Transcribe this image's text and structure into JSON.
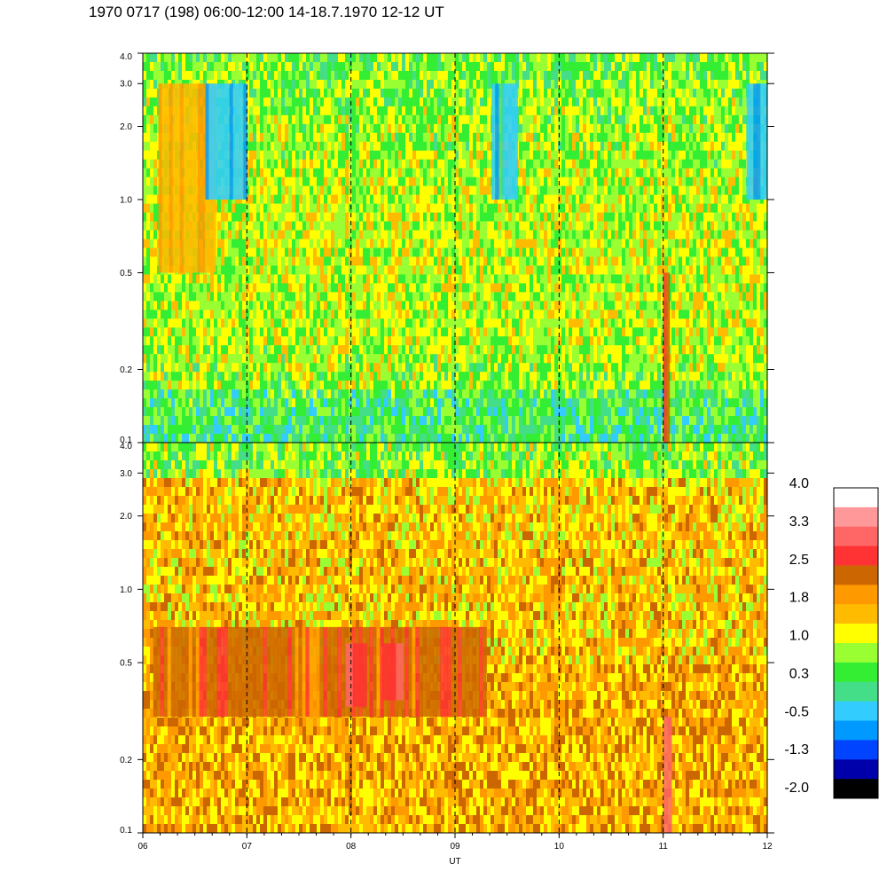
{
  "title": "1970 0717 (198) 06:00-12:00 14-18.7.1970  12-12 UT",
  "chart_data": {
    "type": "heatmap",
    "title": "1970 0717 (198) 06:00-12:00 14-18.7.1970  12-12 UT",
    "xlabel": "UT",
    "xlim": [
      6,
      12
    ],
    "x_ticks": [
      "06",
      "07",
      "08",
      "09",
      "10",
      "11",
      "12"
    ],
    "x_tick_values": [
      6,
      7,
      8,
      9,
      10,
      11,
      12
    ],
    "dashed_verticals": [
      7,
      8,
      9,
      10,
      11
    ],
    "panels": [
      {
        "name": "upper",
        "y_scale": "log",
        "ylim": [
          0.1,
          4.0
        ],
        "y_ticks": [
          "4.0",
          "3.0",
          "2.0",
          "1.0",
          "0.5",
          "0.2",
          "0.1"
        ],
        "y_tick_values": [
          4.0,
          3.0,
          2.0,
          1.0,
          0.5,
          0.2,
          0.1
        ],
        "dominant_levels": [
          0.3,
          1.0
        ],
        "features": [
          {
            "x_start": 6.15,
            "x_end": 6.7,
            "y_min": 0.5,
            "y_max": 3.0,
            "level": 1.8
          },
          {
            "x_start": 6.6,
            "x_end": 7.0,
            "y_min": 1.0,
            "y_max": 3.0,
            "level": -0.5
          },
          {
            "x_start": 9.35,
            "x_end": 9.6,
            "y_min": 1.0,
            "y_max": 3.0,
            "level": -0.5
          },
          {
            "x_start": 11.8,
            "x_end": 12.0,
            "y_min": 1.0,
            "y_max": 3.0,
            "level": -0.5
          },
          {
            "x_start": 11.0,
            "x_end": 11.06,
            "y_min": 0.1,
            "y_max": 0.5,
            "level": 2.5
          }
        ]
      },
      {
        "name": "lower",
        "y_scale": "log",
        "ylim": [
          0.1,
          4.0
        ],
        "y_ticks": [
          "4.0",
          "3.0",
          "2.0",
          "1.0",
          "0.5",
          "0.2",
          "0.1"
        ],
        "y_tick_values": [
          4.0,
          3.0,
          2.0,
          1.0,
          0.5,
          0.2,
          0.1
        ],
        "dominant_levels": [
          1.8,
          2.5
        ],
        "features": [
          {
            "x_start": 6.1,
            "x_end": 9.3,
            "y_min": 0.3,
            "y_max": 0.7,
            "level": 2.5
          },
          {
            "x_start": 7.95,
            "x_end": 8.15,
            "y_min": 0.33,
            "y_max": 0.6,
            "level": 3.0
          },
          {
            "x_start": 8.3,
            "x_end": 8.5,
            "y_min": 0.35,
            "y_max": 0.6,
            "level": 3.0
          },
          {
            "x_start": 11.0,
            "x_end": 11.08,
            "y_min": 0.1,
            "y_max": 0.3,
            "level": 3.0
          }
        ]
      }
    ],
    "colorbar": {
      "labels": [
        "4.0",
        "3.3",
        "2.5",
        "1.8",
        "1.0",
        "0.3",
        "-0.5",
        "-1.3",
        "-2.0"
      ],
      "colors": [
        "#ffffff",
        "#ff9999",
        "#ff6666",
        "#ff3333",
        "#cc6600",
        "#ff9900",
        "#ffbb00",
        "#ffff00",
        "#99ff33",
        "#33ee33",
        "#44dd88",
        "#33ccff",
        "#0099ff",
        "#0044ff",
        "#0000aa",
        "#000000"
      ]
    }
  }
}
